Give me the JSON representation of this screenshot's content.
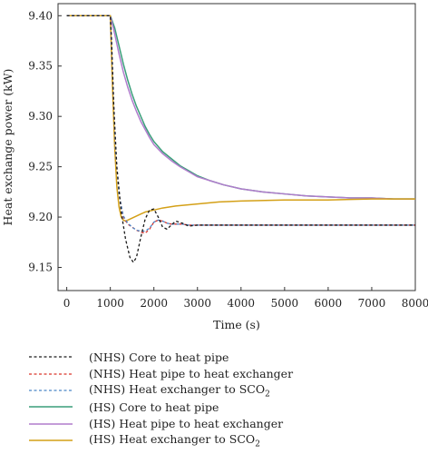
{
  "chart_data": {
    "type": "line",
    "xlabel": "Time (s)",
    "ylabel": "Heat exchange power (kW)",
    "xlim": [
      -200,
      8000
    ],
    "ylim": [
      9.127,
      9.412
    ],
    "xticks": [
      0,
      1000,
      2000,
      3000,
      4000,
      5000,
      6000,
      7000,
      8000
    ],
    "yticks": [
      9.15,
      9.2,
      9.25,
      9.3,
      9.35,
      9.4
    ],
    "ytick_labels": [
      "9.15",
      "9.20",
      "9.25",
      "9.30",
      "9.35",
      "9.40"
    ],
    "grid": false,
    "legend_position": "bottom",
    "series": [
      {
        "name": "(NHS) Core to heat pipe",
        "name_base": "(NHS) Core to heat pipe",
        "name_sub": "",
        "color": "#1a1a1a",
        "dash": "dashed",
        "x": [
          0,
          1000,
          1030,
          1080,
          1150,
          1250,
          1350,
          1450,
          1530,
          1600,
          1700,
          1800,
          1900,
          2000,
          2100,
          2200,
          2300,
          2400,
          2500,
          2650,
          2800,
          3000,
          3500,
          4000,
          5000,
          6000,
          7000,
          8000
        ],
        "y": [
          9.4,
          9.4,
          9.375,
          9.31,
          9.25,
          9.205,
          9.178,
          9.16,
          9.155,
          9.16,
          9.18,
          9.198,
          9.207,
          9.208,
          9.2,
          9.19,
          9.188,
          9.192,
          9.196,
          9.194,
          9.191,
          9.192,
          9.192,
          9.192,
          9.192,
          9.192,
          9.192,
          9.192
        ]
      },
      {
        "name": "(NHS) Heat pipe to heat exchanger",
        "name_base": "(NHS) Heat pipe to heat exchanger",
        "name_sub": "",
        "color": "#d9342b",
        "dash": "dashed",
        "x": [
          0,
          1000,
          1060,
          1120,
          1200,
          1300,
          1400,
          1500,
          1600,
          1700,
          1800,
          1900,
          2000,
          2100,
          2200,
          2300,
          2400,
          2500,
          2650,
          2800,
          3000,
          3500,
          4000,
          5000,
          6000,
          7000,
          8000
        ],
        "y": [
          9.4,
          9.4,
          9.33,
          9.265,
          9.222,
          9.2,
          9.193,
          9.19,
          9.187,
          9.185,
          9.184,
          9.188,
          9.195,
          9.197,
          9.196,
          9.194,
          9.193,
          9.193,
          9.193,
          9.192,
          9.192,
          9.192,
          9.192,
          9.192,
          9.192,
          9.192,
          9.192
        ]
      },
      {
        "name": "(NHS) Heat exchanger to SCO2",
        "name_base": "(NHS) Heat exchanger to SCO",
        "name_sub": "2",
        "color": "#4a86c8",
        "dash": "dashed",
        "x": [
          0,
          1000,
          1060,
          1120,
          1200,
          1300,
          1400,
          1500,
          1600,
          1700,
          1800,
          1900,
          2000,
          2100,
          2200,
          2300,
          2400,
          2500,
          2650,
          2800,
          3000,
          3500,
          4000,
          5000,
          6000,
          7000,
          8000
        ],
        "y": [
          9.4,
          9.4,
          9.33,
          9.265,
          9.222,
          9.201,
          9.194,
          9.19,
          9.187,
          9.186,
          9.186,
          9.189,
          9.195,
          9.197,
          9.196,
          9.194,
          9.193,
          9.193,
          9.193,
          9.192,
          9.192,
          9.192,
          9.192,
          9.192,
          9.192,
          9.192,
          9.192
        ]
      },
      {
        "name": "(HS) Core to heat pipe",
        "name_base": "(HS) Core to heat pipe",
        "name_sub": "",
        "color": "#3a9e7a",
        "dash": "solid",
        "x": [
          0,
          1000,
          1100,
          1200,
          1300,
          1400,
          1500,
          1600,
          1700,
          1800,
          1900,
          2000,
          2200,
          2400,
          2600,
          2800,
          3000,
          3300,
          3600,
          4000,
          4500,
          5000,
          5500,
          6000,
          6500,
          7000,
          7500,
          8000
        ],
        "y": [
          9.4,
          9.4,
          9.388,
          9.37,
          9.352,
          9.336,
          9.322,
          9.31,
          9.3,
          9.29,
          9.282,
          9.275,
          9.265,
          9.258,
          9.251,
          9.246,
          9.241,
          9.236,
          9.232,
          9.228,
          9.225,
          9.223,
          9.221,
          9.22,
          9.219,
          9.219,
          9.218,
          9.218
        ]
      },
      {
        "name": "(HS) Heat pipe to heat exchanger",
        "name_base": "(HS) Heat pipe to heat exchanger",
        "name_sub": "",
        "color": "#b07ccc",
        "dash": "solid",
        "x": [
          0,
          1000,
          1100,
          1200,
          1300,
          1400,
          1500,
          1600,
          1700,
          1800,
          1900,
          2000,
          2200,
          2400,
          2600,
          2800,
          3000,
          3300,
          3600,
          4000,
          4500,
          5000,
          5500,
          6000,
          6500,
          7000,
          7500,
          8000
        ],
        "y": [
          9.4,
          9.4,
          9.382,
          9.362,
          9.344,
          9.329,
          9.316,
          9.305,
          9.295,
          9.287,
          9.279,
          9.272,
          9.263,
          9.256,
          9.25,
          9.245,
          9.24,
          9.236,
          9.232,
          9.228,
          9.225,
          9.223,
          9.221,
          9.22,
          9.219,
          9.219,
          9.218,
          9.218
        ]
      },
      {
        "name": "(HS) Heat exchanger to SCO2",
        "name_base": "(HS) Heat exchanger to SCO",
        "name_sub": "2",
        "color": "#d4a017",
        "dash": "solid",
        "x": [
          0,
          1000,
          1050,
          1100,
          1150,
          1200,
          1250,
          1300,
          1350,
          1400,
          1450,
          1500,
          1600,
          1700,
          1800,
          2000,
          2200,
          2500,
          3000,
          3500,
          4000,
          5000,
          6000,
          7000,
          8000
        ],
        "y": [
          9.4,
          9.4,
          9.33,
          9.27,
          9.23,
          9.21,
          9.2,
          9.197,
          9.196,
          9.197,
          9.198,
          9.199,
          9.201,
          9.203,
          9.205,
          9.207,
          9.209,
          9.211,
          9.213,
          9.215,
          9.216,
          9.217,
          9.217,
          9.218,
          9.218
        ]
      }
    ]
  }
}
